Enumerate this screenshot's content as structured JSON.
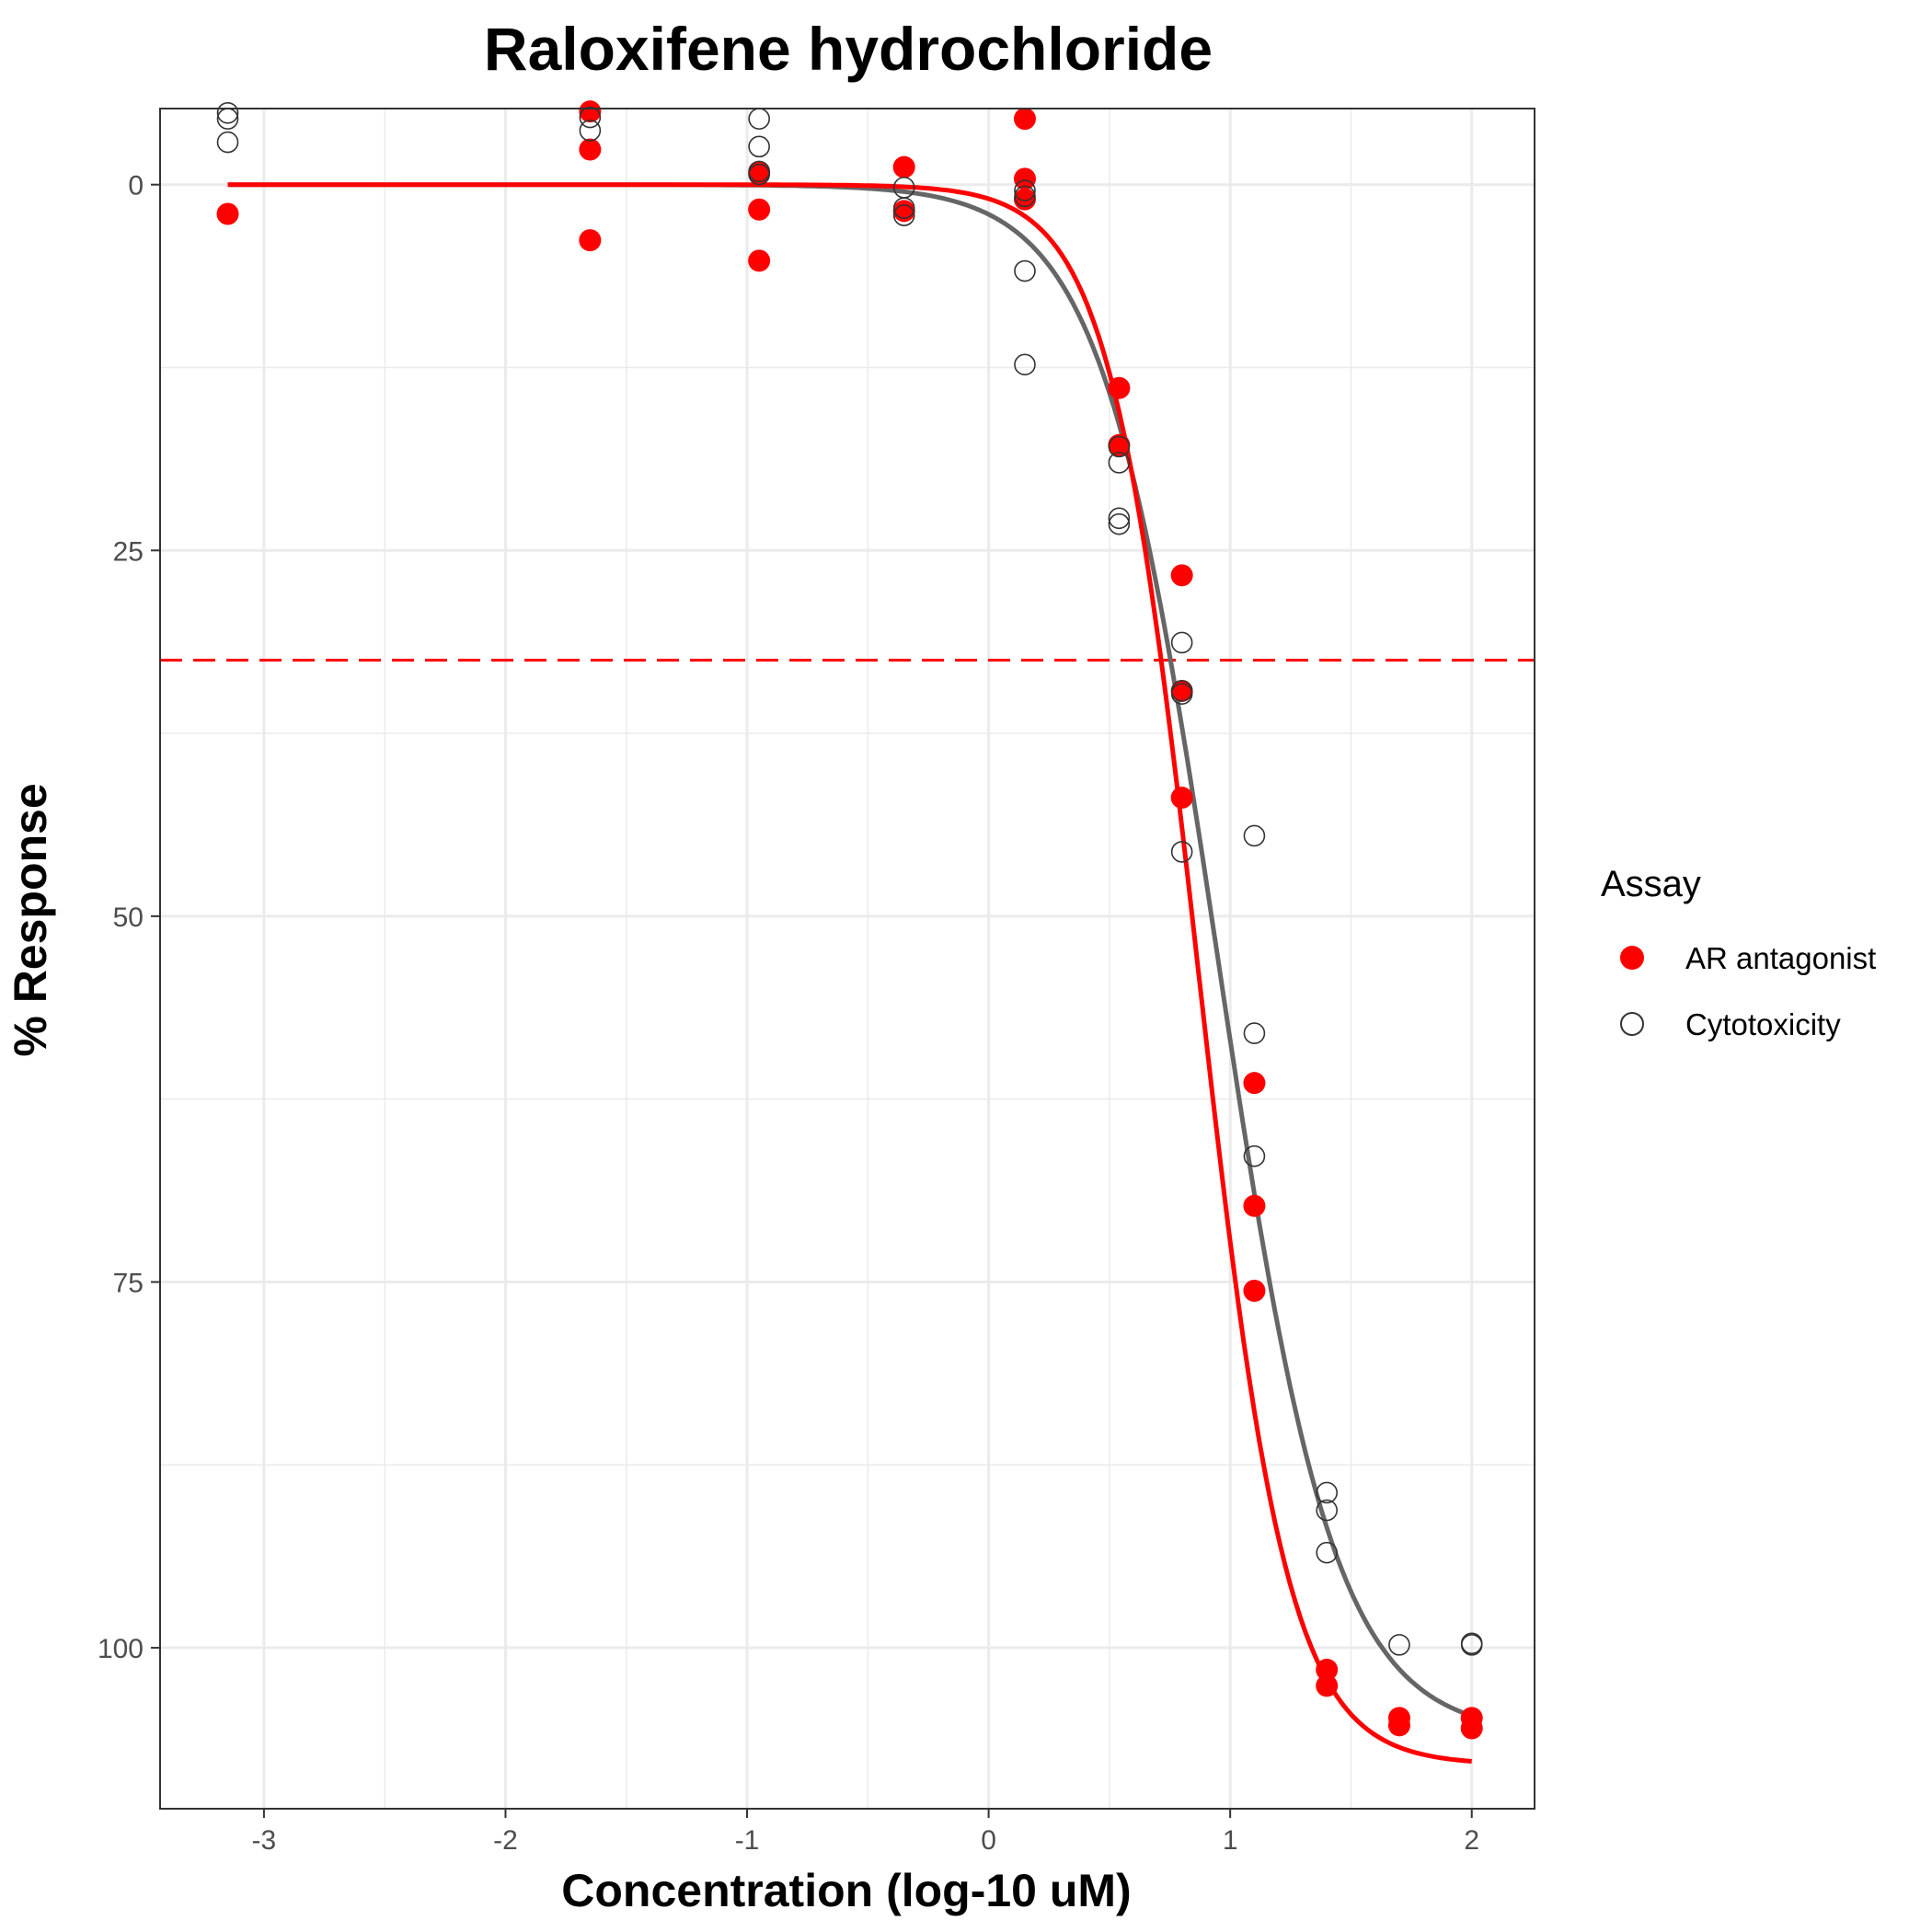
{
  "chart_data": {
    "type": "scatter",
    "title": "Raloxifene hydrochloride",
    "xlabel": "Concentration (log-10 uM)",
    "ylabel": "% Response",
    "xlim": [
      -3.43,
      2.26
    ],
    "ylim": [
      -5.2,
      111
    ],
    "y_reversed": true,
    "grid": true,
    "x_ticks": [
      -3,
      -2,
      -1,
      0,
      1,
      2
    ],
    "x_tick_labels": [
      "-3",
      "-2",
      "-1",
      "0",
      "1",
      "2"
    ],
    "y_ticks": [
      0,
      25,
      50,
      75,
      100
    ],
    "y_tick_labels": [
      "0",
      "25",
      "50",
      "75",
      "100"
    ],
    "threshold_line": {
      "y": 32.5,
      "color": "#ff0000",
      "style": "dashed"
    },
    "legend": {
      "title": "Assay",
      "position": "right",
      "entries": [
        {
          "label": "AR antagonist",
          "marker": "filled-circle",
          "color": "#ff0000"
        },
        {
          "label": "Cytotoxicity",
          "marker": "open-circle",
          "color": "#333333"
        }
      ]
    },
    "series": [
      {
        "name": "AR antagonist",
        "color": "#ff0000",
        "marker": "filled",
        "points": [
          [
            -3.15,
            2.0
          ],
          [
            -1.65,
            -5.0
          ],
          [
            -1.65,
            -2.4
          ],
          [
            -1.65,
            3.8
          ],
          [
            -0.95,
            -0.8
          ],
          [
            -0.95,
            1.7
          ],
          [
            -0.95,
            5.2
          ],
          [
            -0.35,
            -1.2
          ],
          [
            -0.35,
            1.8
          ],
          [
            0.15,
            -4.5
          ],
          [
            0.15,
            -0.4
          ],
          [
            0.15,
            1.0
          ],
          [
            0.54,
            13.9
          ],
          [
            0.54,
            17.8
          ],
          [
            0.8,
            26.7
          ],
          [
            0.8,
            34.6
          ],
          [
            0.8,
            41.9
          ],
          [
            1.1,
            61.4
          ],
          [
            1.1,
            69.8
          ],
          [
            1.1,
            75.6
          ],
          [
            1.4,
            101.5
          ],
          [
            1.4,
            102.6
          ],
          [
            1.7,
            104.8
          ],
          [
            1.7,
            105.3
          ],
          [
            2.0,
            104.8
          ],
          [
            2.0,
            105.5
          ]
        ],
        "curve": {
          "top": 0,
          "bottom": 108,
          "log_ac50": 0.87,
          "hill": 2.35,
          "x_range": [
            -3.15,
            2.0
          ]
        }
      },
      {
        "name": "Cytotoxicity",
        "color": "#555555",
        "marker": "open",
        "points": [
          [
            -3.15,
            -4.9
          ],
          [
            -3.15,
            -4.5
          ],
          [
            -3.15,
            -2.9
          ],
          [
            -1.65,
            -4.6
          ],
          [
            -1.65,
            -3.7
          ],
          [
            -0.95,
            -4.5
          ],
          [
            -0.95,
            -2.6
          ],
          [
            -0.95,
            -0.9
          ],
          [
            -0.95,
            -0.7
          ],
          [
            -0.35,
            0.2
          ],
          [
            -0.35,
            1.6
          ],
          [
            -0.35,
            2.1
          ],
          [
            0.15,
            0.4
          ],
          [
            0.15,
            0.8
          ],
          [
            0.15,
            5.9
          ],
          [
            0.15,
            12.3
          ],
          [
            0.54,
            17.9
          ],
          [
            0.54,
            19.0
          ],
          [
            0.54,
            22.8
          ],
          [
            0.54,
            23.2
          ],
          [
            0.8,
            31.3
          ],
          [
            0.8,
            34.6
          ],
          [
            0.8,
            34.8
          ],
          [
            0.8,
            45.6
          ],
          [
            1.1,
            44.5
          ],
          [
            1.1,
            58.0
          ],
          [
            1.1,
            66.4
          ],
          [
            1.4,
            89.4
          ],
          [
            1.4,
            90.6
          ],
          [
            1.4,
            93.5
          ],
          [
            1.7,
            99.8
          ],
          [
            2.0,
            99.7
          ],
          [
            2.0,
            99.8
          ]
        ],
        "curve": {
          "top": 0,
          "bottom": 106,
          "log_ac50": 0.95,
          "hill": 1.8,
          "x_range": [
            -3.15,
            2.0
          ]
        }
      }
    ]
  }
}
